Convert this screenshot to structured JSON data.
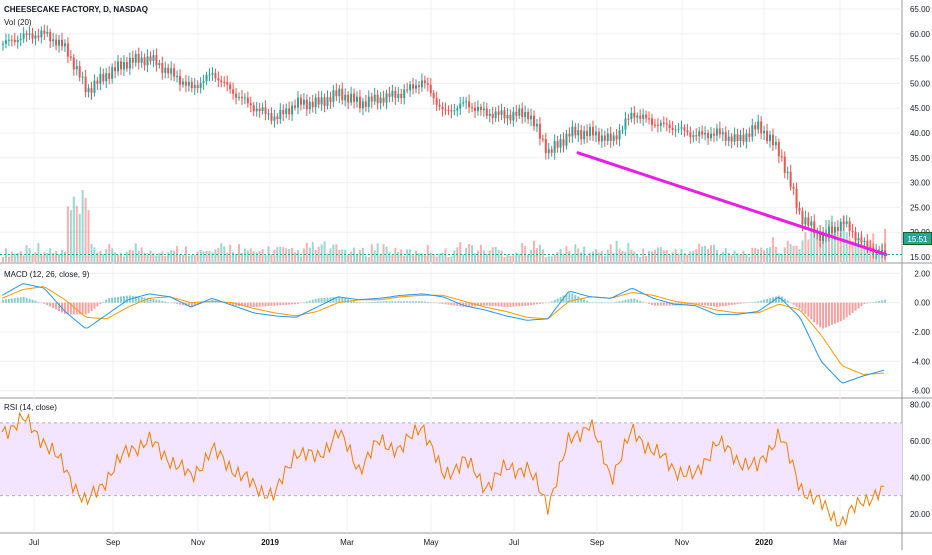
{
  "header": {
    "symbol": "CHEESECAKE FACTORY, D, NASDAQ",
    "volume": "Vol (20)",
    "macd": "MACD (12, 26, close, 9)",
    "rsi": "RSI (14, close)"
  },
  "colors": {
    "up": "#26a69a",
    "down": "#ef5350",
    "trendline": "#e91ee4",
    "macd": "#2196f3",
    "signal": "#ff9800",
    "rsi": "#f57c00",
    "rsi_band": "#f3e5ff"
  },
  "last_price_tag": "15.51",
  "chart_data": [
    {
      "type": "candlestick",
      "x_ticks": [
        "Jul",
        "Sep",
        "Nov",
        "2019",
        "Mar",
        "May",
        "Jul",
        "Sep",
        "Nov",
        "2020",
        "Mar"
      ],
      "y_ticks": [
        "65.00",
        "60.00",
        "55.00",
        "50.00",
        "45.00",
        "40.00",
        "35.00",
        "30.00",
        "25.00",
        "20.00",
        "15.00"
      ],
      "ylim": [
        14,
        66
      ],
      "close_series": [
        58,
        59.5,
        60,
        57,
        48.5,
        52,
        54.5,
        55,
        52,
        49,
        52,
        48,
        45,
        43,
        46,
        46,
        48,
        46,
        47,
        48,
        50.5,
        44,
        46,
        44,
        43.5,
        44,
        36,
        40,
        40,
        38.5,
        44,
        42,
        41,
        39.5,
        40,
        38.5,
        41.5,
        36,
        23,
        19,
        22,
        17.5,
        15.5
      ],
      "trendline": {
        "from_price": 36,
        "to_price": 15.5,
        "color": "#e91ee4"
      },
      "last_price": 15.51
    },
    {
      "type": "bar",
      "name": "Vol (20)",
      "relative_values": [
        0.2,
        0.3,
        0.2,
        1.0,
        0.25,
        0.2,
        0.3,
        0.2,
        0.25,
        0.2,
        0.3,
        0.2,
        0.25,
        0.2,
        0.3,
        0.25,
        0.2,
        0.3,
        0.2,
        0.25,
        0.2,
        0.3,
        0.25,
        0.2,
        0.3,
        0.2,
        0.25,
        0.2,
        0.3,
        0.2,
        0.25,
        0.2,
        0.3,
        0.25,
        0.2,
        0.35,
        0.3,
        0.6,
        0.7,
        0.6,
        0.5
      ]
    },
    {
      "type": "line",
      "name": "MACD (12, 26, close, 9)",
      "y_ticks": [
        "2.00",
        "0.00",
        "-2.00",
        "-4.00",
        "-6.00"
      ],
      "ylim": [
        -6.5,
        2.5
      ],
      "macd": [
        0.5,
        1.3,
        1.0,
        -0.6,
        -1.8,
        -0.8,
        0.2,
        0.6,
        0.4,
        -0.3,
        0.3,
        -0.2,
        -0.7,
        -0.9,
        -1.0,
        -0.3,
        0.4,
        0.2,
        0.3,
        0.5,
        0.6,
        0.4,
        -0.2,
        -0.5,
        -0.9,
        -1.2,
        -1.1,
        0.8,
        0.4,
        0.3,
        1.0,
        0.3,
        -0.1,
        -0.2,
        -0.8,
        -0.8,
        -0.6,
        0.4,
        -1.0,
        -4.0,
        -5.5,
        -5.0,
        -4.6
      ],
      "signal": [
        0.3,
        0.9,
        1.1,
        0.2,
        -1.0,
        -1.1,
        -0.3,
        0.3,
        0.4,
        0.0,
        0.1,
        0.0,
        -0.4,
        -0.7,
        -0.9,
        -0.6,
        0.0,
        0.2,
        0.2,
        0.4,
        0.5,
        0.5,
        0.1,
        -0.3,
        -0.6,
        -1.0,
        -1.1,
        0.1,
        0.4,
        0.3,
        0.7,
        0.5,
        0.1,
        -0.1,
        -0.5,
        -0.7,
        -0.7,
        -0.1,
        -0.5,
        -2.2,
        -4.3,
        -4.9,
        -4.8
      ]
    },
    {
      "type": "line",
      "name": "RSI (14, close)",
      "y_ticks": [
        "80.00",
        "60.00",
        "40.00",
        "20.00"
      ],
      "ylim": [
        10,
        82
      ],
      "band": [
        30,
        70
      ],
      "values": [
        65,
        72,
        60,
        45,
        25,
        40,
        55,
        60,
        50,
        40,
        55,
        45,
        35,
        30,
        55,
        50,
        65,
        45,
        60,
        55,
        70,
        40,
        50,
        35,
        45,
        45,
        25,
        60,
        70,
        40,
        65,
        55,
        45,
        40,
        60,
        50,
        45,
        65,
        35,
        25,
        15,
        28,
        32
      ]
    }
  ]
}
